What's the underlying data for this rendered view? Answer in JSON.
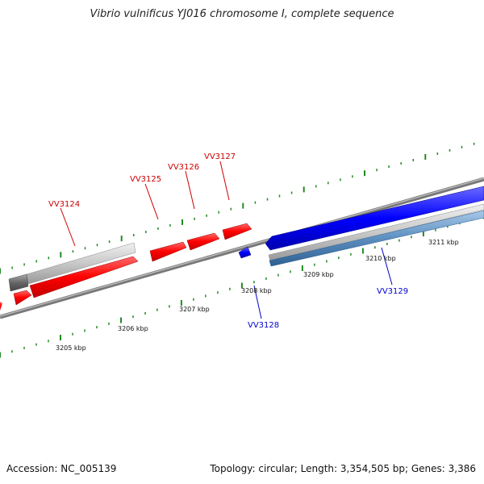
{
  "title": "Vibrio vulnificus YJ016 chromosome I, complete sequence",
  "accession": "Accession: NC_005139",
  "summary": "Topology: circular; Length: 3,354,505 bp; Genes: 3,386",
  "colors": {
    "forward_cds": "#ff0000",
    "reverse_cds": "#0000ff",
    "forward_label": "#cc0000",
    "reverse_label": "#0000cc",
    "tick": "#228b22",
    "backbone": "#888888"
  },
  "scale_labels": [
    "3205 kbp",
    "3206 kbp",
    "3207 kbp",
    "3208 kbp",
    "3209 kbp",
    "3210 kbp",
    "3211 kbp"
  ],
  "gene_labels": [
    {
      "name": "VV3124",
      "strand": "forward"
    },
    {
      "name": "VV3125",
      "strand": "forward"
    },
    {
      "name": "VV3126",
      "strand": "forward"
    },
    {
      "name": "VV3127",
      "strand": "forward"
    },
    {
      "name": "VV3128",
      "strand": "reverse"
    },
    {
      "name": "VV3129",
      "strand": "reverse"
    }
  ]
}
